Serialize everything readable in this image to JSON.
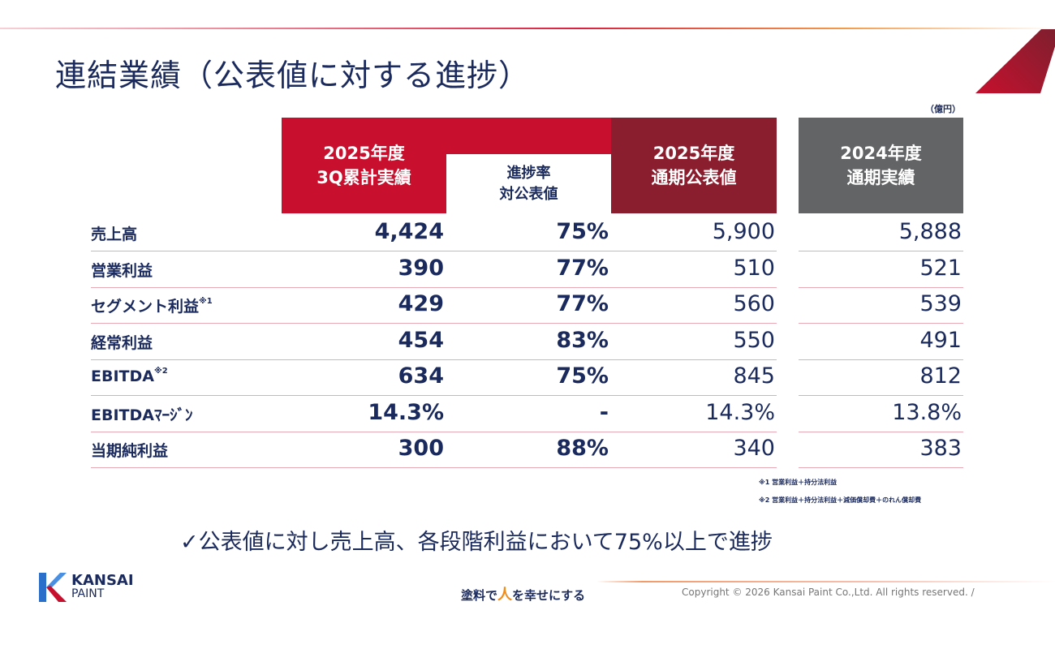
{
  "title": "連結業績（公表値に対する進捗）",
  "unit": "（億円）",
  "headers": {
    "col1": [
      "2025年度",
      "3Q累計実績"
    ],
    "col2": [
      "進捗率",
      "対公表値"
    ],
    "col3": [
      "2025年度",
      "通期公表値"
    ],
    "col4": [
      "2024年度",
      "通期実績"
    ]
  },
  "rows": [
    {
      "label": "売上高",
      "note": "",
      "c1": "4,424",
      "c2": "75%",
      "c3": "5,900",
      "c4": "5,888"
    },
    {
      "label": "営業利益",
      "note": "",
      "c1": "390",
      "c2": "77%",
      "c3": "510",
      "c4": "521"
    },
    {
      "label": "セグメント利益",
      "note": "※1",
      "c1": "429",
      "c2": "77%",
      "c3": "560",
      "c4": "539"
    },
    {
      "label": "経常利益",
      "note": "",
      "c1": "454",
      "c2": "83%",
      "c3": "550",
      "c4": "491"
    },
    {
      "label": "EBITDA",
      "note": "※2",
      "c1": "634",
      "c2": "75%",
      "c3": "845",
      "c4": "812"
    },
    {
      "label": "EBITDAﾏｰｼﾞﾝ",
      "note": "",
      "c1": "14.3%",
      "c2": "-",
      "c3": "14.3%",
      "c4": "13.8%"
    },
    {
      "label": "当期純利益",
      "note": "",
      "c1": "300",
      "c2": "88%",
      "c3": "340",
      "c4": "383"
    }
  ],
  "footnotes": [
    "※1  営業利益＋持分法利益",
    "※2  営業利益＋持分法利益＋減価償却費＋のれん償却費"
  ],
  "conclusion": "✓公表値に対し売上高、各段階利益において75%以上で進捗",
  "logo": {
    "line1": "KANSAI",
    "line2": "PAINT"
  },
  "slogan": {
    "pre": "塗料で",
    "hito": "人",
    "post": "を幸せにする"
  },
  "copyright": "Copyright © 2026 Kansai Paint Co.,Ltd. All rights reserved.  /"
}
